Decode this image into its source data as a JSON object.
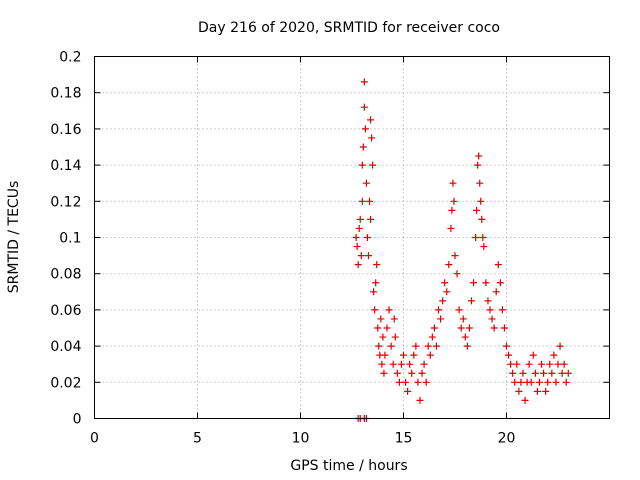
{
  "chart_data": {
    "type": "scatter",
    "title": "Day 216 of 2020, SRMTID for receiver coco",
    "xlabel": "GPS time / hours",
    "ylabel": "SRMTID / TECUs",
    "xlim": [
      0,
      25
    ],
    "ylim": [
      0,
      0.2
    ],
    "x_ticks": [
      0,
      5,
      10,
      15,
      20
    ],
    "y_ticks": [
      0,
      0.02,
      0.04,
      0.06,
      0.08,
      0.1,
      0.12,
      0.14,
      0.16,
      0.18,
      0.2
    ],
    "x_tick_labels": [
      "0",
      "5",
      "10",
      "15",
      "20"
    ],
    "y_tick_labels": [
      "0",
      "0.02",
      "0.04",
      "0.06",
      "0.08",
      "0.1",
      "0.12",
      "0.14",
      "0.16",
      "0.18",
      "0.2"
    ],
    "marker": "+",
    "color": "#e00000",
    "grid": true,
    "series": [
      {
        "name": "SRMTID",
        "points": [
          [
            12.8,
            0.0
          ],
          [
            12.9,
            0.0
          ],
          [
            13.1,
            0.0
          ],
          [
            13.2,
            0.0
          ],
          [
            12.7,
            0.1
          ],
          [
            12.75,
            0.095
          ],
          [
            12.8,
            0.085
          ],
          [
            12.85,
            0.105
          ],
          [
            12.9,
            0.11
          ],
          [
            12.95,
            0.09
          ],
          [
            13.0,
            0.14
          ],
          [
            13.05,
            0.15
          ],
          [
            13.1,
            0.186
          ],
          [
            13.1,
            0.172
          ],
          [
            13.15,
            0.16
          ],
          [
            13.0,
            0.12
          ],
          [
            13.2,
            0.13
          ],
          [
            13.25,
            0.1
          ],
          [
            13.3,
            0.09
          ],
          [
            13.35,
            0.12
          ],
          [
            13.4,
            0.165
          ],
          [
            13.45,
            0.155
          ],
          [
            13.5,
            0.14
          ],
          [
            13.4,
            0.11
          ],
          [
            13.55,
            0.07
          ],
          [
            13.6,
            0.06
          ],
          [
            13.65,
            0.075
          ],
          [
            13.7,
            0.085
          ],
          [
            13.75,
            0.05
          ],
          [
            13.8,
            0.04
          ],
          [
            13.85,
            0.035
          ],
          [
            13.9,
            0.055
          ],
          [
            13.95,
            0.03
          ],
          [
            14.0,
            0.045
          ],
          [
            14.05,
            0.025
          ],
          [
            14.1,
            0.035
          ],
          [
            14.2,
            0.05
          ],
          [
            14.3,
            0.06
          ],
          [
            14.4,
            0.04
          ],
          [
            14.5,
            0.03
          ],
          [
            14.55,
            0.055
          ],
          [
            14.6,
            0.045
          ],
          [
            14.7,
            0.025
          ],
          [
            14.8,
            0.02
          ],
          [
            14.9,
            0.03
          ],
          [
            15.0,
            0.035
          ],
          [
            15.1,
            0.02
          ],
          [
            15.2,
            0.015
          ],
          [
            15.3,
            0.03
          ],
          [
            15.4,
            0.025
          ],
          [
            15.5,
            0.035
          ],
          [
            15.6,
            0.04
          ],
          [
            15.7,
            0.02
          ],
          [
            15.8,
            0.01
          ],
          [
            15.9,
            0.025
          ],
          [
            16.0,
            0.03
          ],
          [
            16.1,
            0.02
          ],
          [
            16.2,
            0.04
          ],
          [
            16.3,
            0.035
          ],
          [
            16.4,
            0.045
          ],
          [
            16.5,
            0.05
          ],
          [
            16.6,
            0.04
          ],
          [
            16.7,
            0.06
          ],
          [
            16.8,
            0.055
          ],
          [
            16.9,
            0.065
          ],
          [
            17.0,
            0.075
          ],
          [
            17.1,
            0.07
          ],
          [
            17.2,
            0.085
          ],
          [
            17.3,
            0.105
          ],
          [
            17.35,
            0.115
          ],
          [
            17.4,
            0.13
          ],
          [
            17.45,
            0.12
          ],
          [
            17.5,
            0.09
          ],
          [
            17.6,
            0.08
          ],
          [
            17.7,
            0.06
          ],
          [
            17.8,
            0.05
          ],
          [
            17.9,
            0.055
          ],
          [
            18.0,
            0.045
          ],
          [
            18.1,
            0.04
          ],
          [
            18.2,
            0.05
          ],
          [
            18.3,
            0.065
          ],
          [
            18.4,
            0.075
          ],
          [
            18.5,
            0.1
          ],
          [
            18.55,
            0.115
          ],
          [
            18.6,
            0.14
          ],
          [
            18.65,
            0.145
          ],
          [
            18.7,
            0.13
          ],
          [
            18.75,
            0.12
          ],
          [
            18.8,
            0.11
          ],
          [
            18.85,
            0.1
          ],
          [
            18.9,
            0.095
          ],
          [
            19.0,
            0.075
          ],
          [
            19.1,
            0.065
          ],
          [
            19.2,
            0.06
          ],
          [
            19.3,
            0.055
          ],
          [
            19.4,
            0.05
          ],
          [
            19.5,
            0.07
          ],
          [
            19.6,
            0.085
          ],
          [
            19.7,
            0.075
          ],
          [
            19.8,
            0.06
          ],
          [
            19.9,
            0.05
          ],
          [
            20.0,
            0.04
          ],
          [
            20.1,
            0.035
          ],
          [
            20.2,
            0.03
          ],
          [
            20.3,
            0.025
          ],
          [
            20.4,
            0.02
          ],
          [
            20.5,
            0.03
          ],
          [
            20.6,
            0.015
          ],
          [
            20.7,
            0.02
          ],
          [
            20.8,
            0.025
          ],
          [
            20.9,
            0.01
          ],
          [
            21.0,
            0.02
          ],
          [
            21.1,
            0.03
          ],
          [
            21.2,
            0.02
          ],
          [
            21.3,
            0.035
          ],
          [
            21.4,
            0.025
          ],
          [
            21.5,
            0.015
          ],
          [
            21.6,
            0.02
          ],
          [
            21.7,
            0.03
          ],
          [
            21.8,
            0.025
          ],
          [
            21.9,
            0.015
          ],
          [
            22.0,
            0.02
          ],
          [
            22.1,
            0.03
          ],
          [
            22.2,
            0.025
          ],
          [
            22.3,
            0.035
          ],
          [
            22.4,
            0.02
          ],
          [
            22.5,
            0.03
          ],
          [
            22.6,
            0.04
          ],
          [
            22.7,
            0.025
          ],
          [
            22.8,
            0.03
          ],
          [
            22.9,
            0.02
          ],
          [
            23.0,
            0.025
          ]
        ]
      }
    ]
  }
}
